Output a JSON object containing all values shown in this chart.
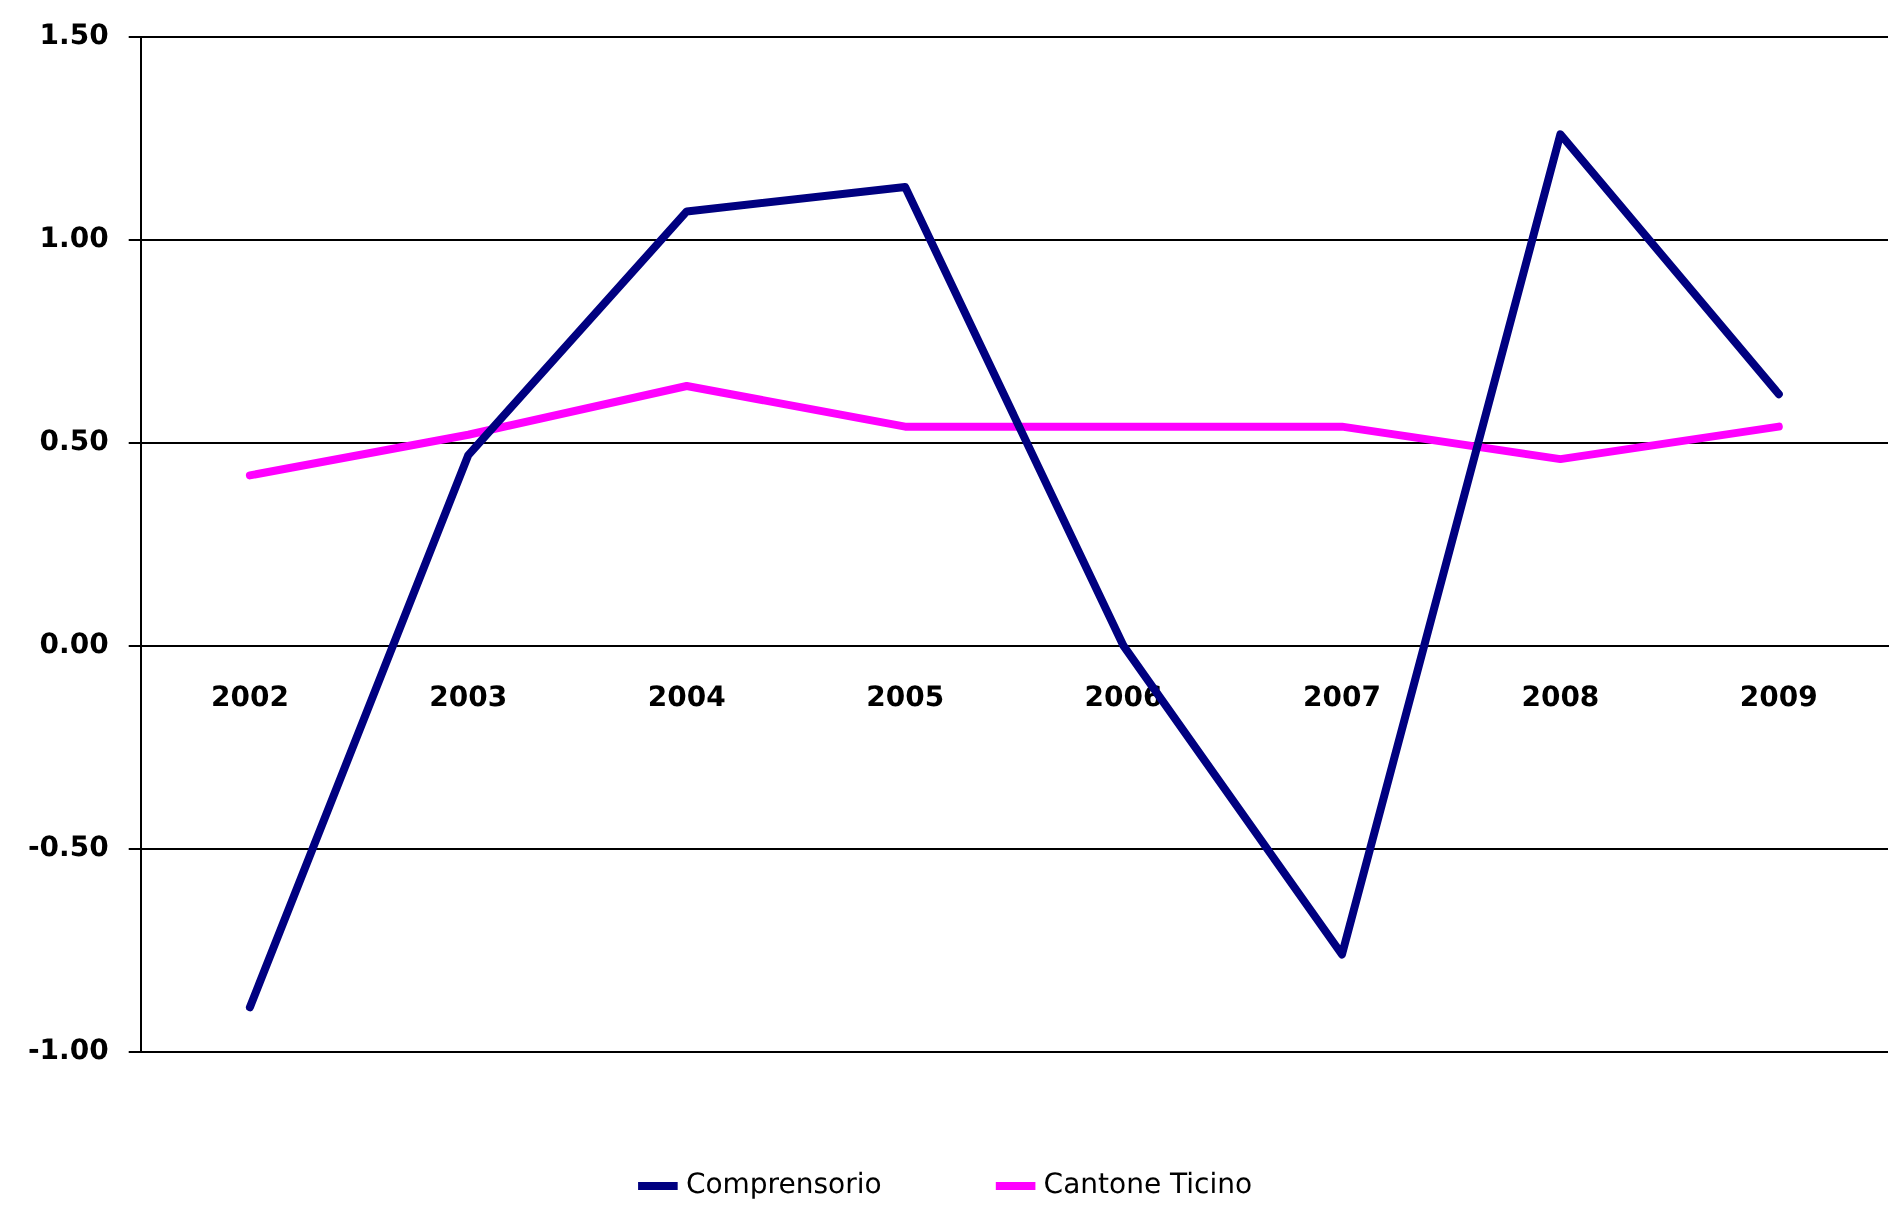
{
  "chart_data": {
    "type": "line",
    "categories": [
      "2002",
      "2003",
      "2004",
      "2005",
      "2006",
      "2007",
      "2008",
      "2009"
    ],
    "series": [
      {
        "name": "Comprensorio",
        "color": "#000080",
        "values": [
          -0.89,
          0.47,
          1.07,
          1.13,
          0.0,
          -0.76,
          1.26,
          0.62
        ]
      },
      {
        "name": "Cantone Ticino",
        "color": "#ff00ff",
        "values": [
          0.42,
          0.52,
          0.64,
          0.54,
          0.54,
          0.54,
          0.46,
          0.54
        ]
      }
    ],
    "ylim": [
      -1,
      1.5
    ],
    "yticks": [
      {
        "value": -1,
        "label": "-1.00"
      },
      {
        "value": -0.5,
        "label": "-0.50"
      },
      {
        "value": 0,
        "label": "0.00"
      },
      {
        "value": 0.5,
        "label": "0.50"
      },
      {
        "value": 1,
        "label": "1.00"
      },
      {
        "value": 1.5,
        "label": "1.50"
      }
    ],
    "grid": "y",
    "legend": "bottom",
    "marker": "none",
    "line_style": "solid"
  }
}
